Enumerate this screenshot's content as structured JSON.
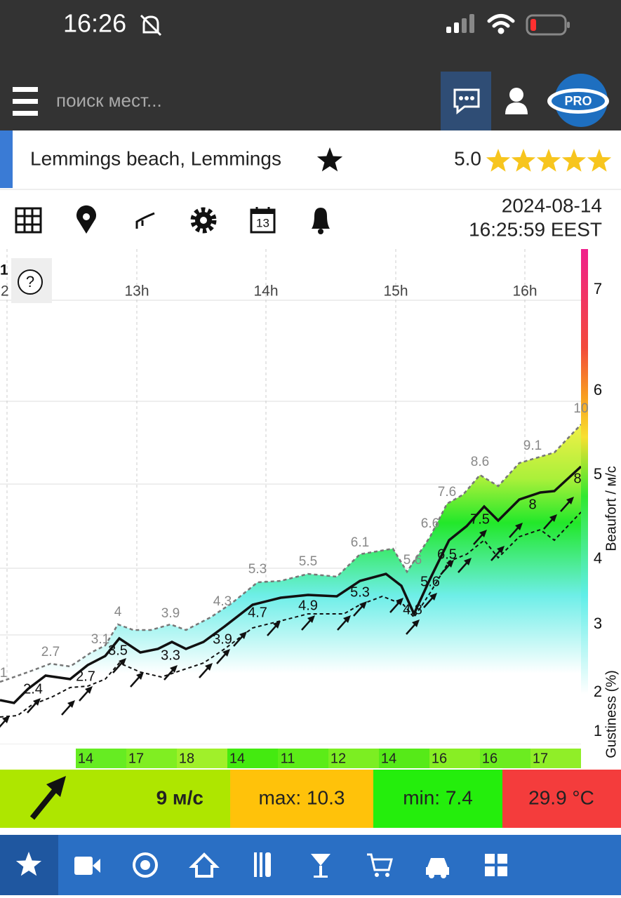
{
  "status_bar": {
    "time": "16:26"
  },
  "header": {
    "search_placeholder": "поиск мест...",
    "logo": "PRO"
  },
  "location": {
    "name": "Lemmings beach, Lemmings",
    "rating": "5.0"
  },
  "toolbar": {
    "calendar_day": "13"
  },
  "timestamp": {
    "date": "2024-08-14",
    "time": "16:25:59 EEST"
  },
  "chart": {
    "cut_labels": [
      "1",
      "2"
    ],
    "help": "?",
    "hours": [
      "13h",
      "14h",
      "15h",
      "16h"
    ],
    "beaufort_ticks": [
      7,
      6,
      5,
      4,
      3,
      2,
      1
    ],
    "axis_title": "Beaufort / м/с",
    "gustiness_title": "Gustiness (%)",
    "gust_labels": [
      1,
      2.7,
      3.1,
      4,
      3.9,
      4.3,
      5.3,
      5.5,
      6.1,
      5.6,
      6.6,
      7.6,
      8.6,
      9.1,
      10
    ],
    "mean_labels": [
      2.4,
      2.7,
      3.5,
      3.3,
      3.9,
      4.7,
      4.9,
      5.3,
      4.8,
      5.6,
      6.5,
      7.5,
      8,
      8
    ],
    "gustiness": [
      14,
      17,
      18,
      14,
      11,
      12,
      14,
      16,
      16,
      17
    ]
  },
  "summary": {
    "speed": "9 м/с",
    "max": "max: 10.3",
    "min": "min: 7.4",
    "temperature": "29.9 °C"
  }
}
